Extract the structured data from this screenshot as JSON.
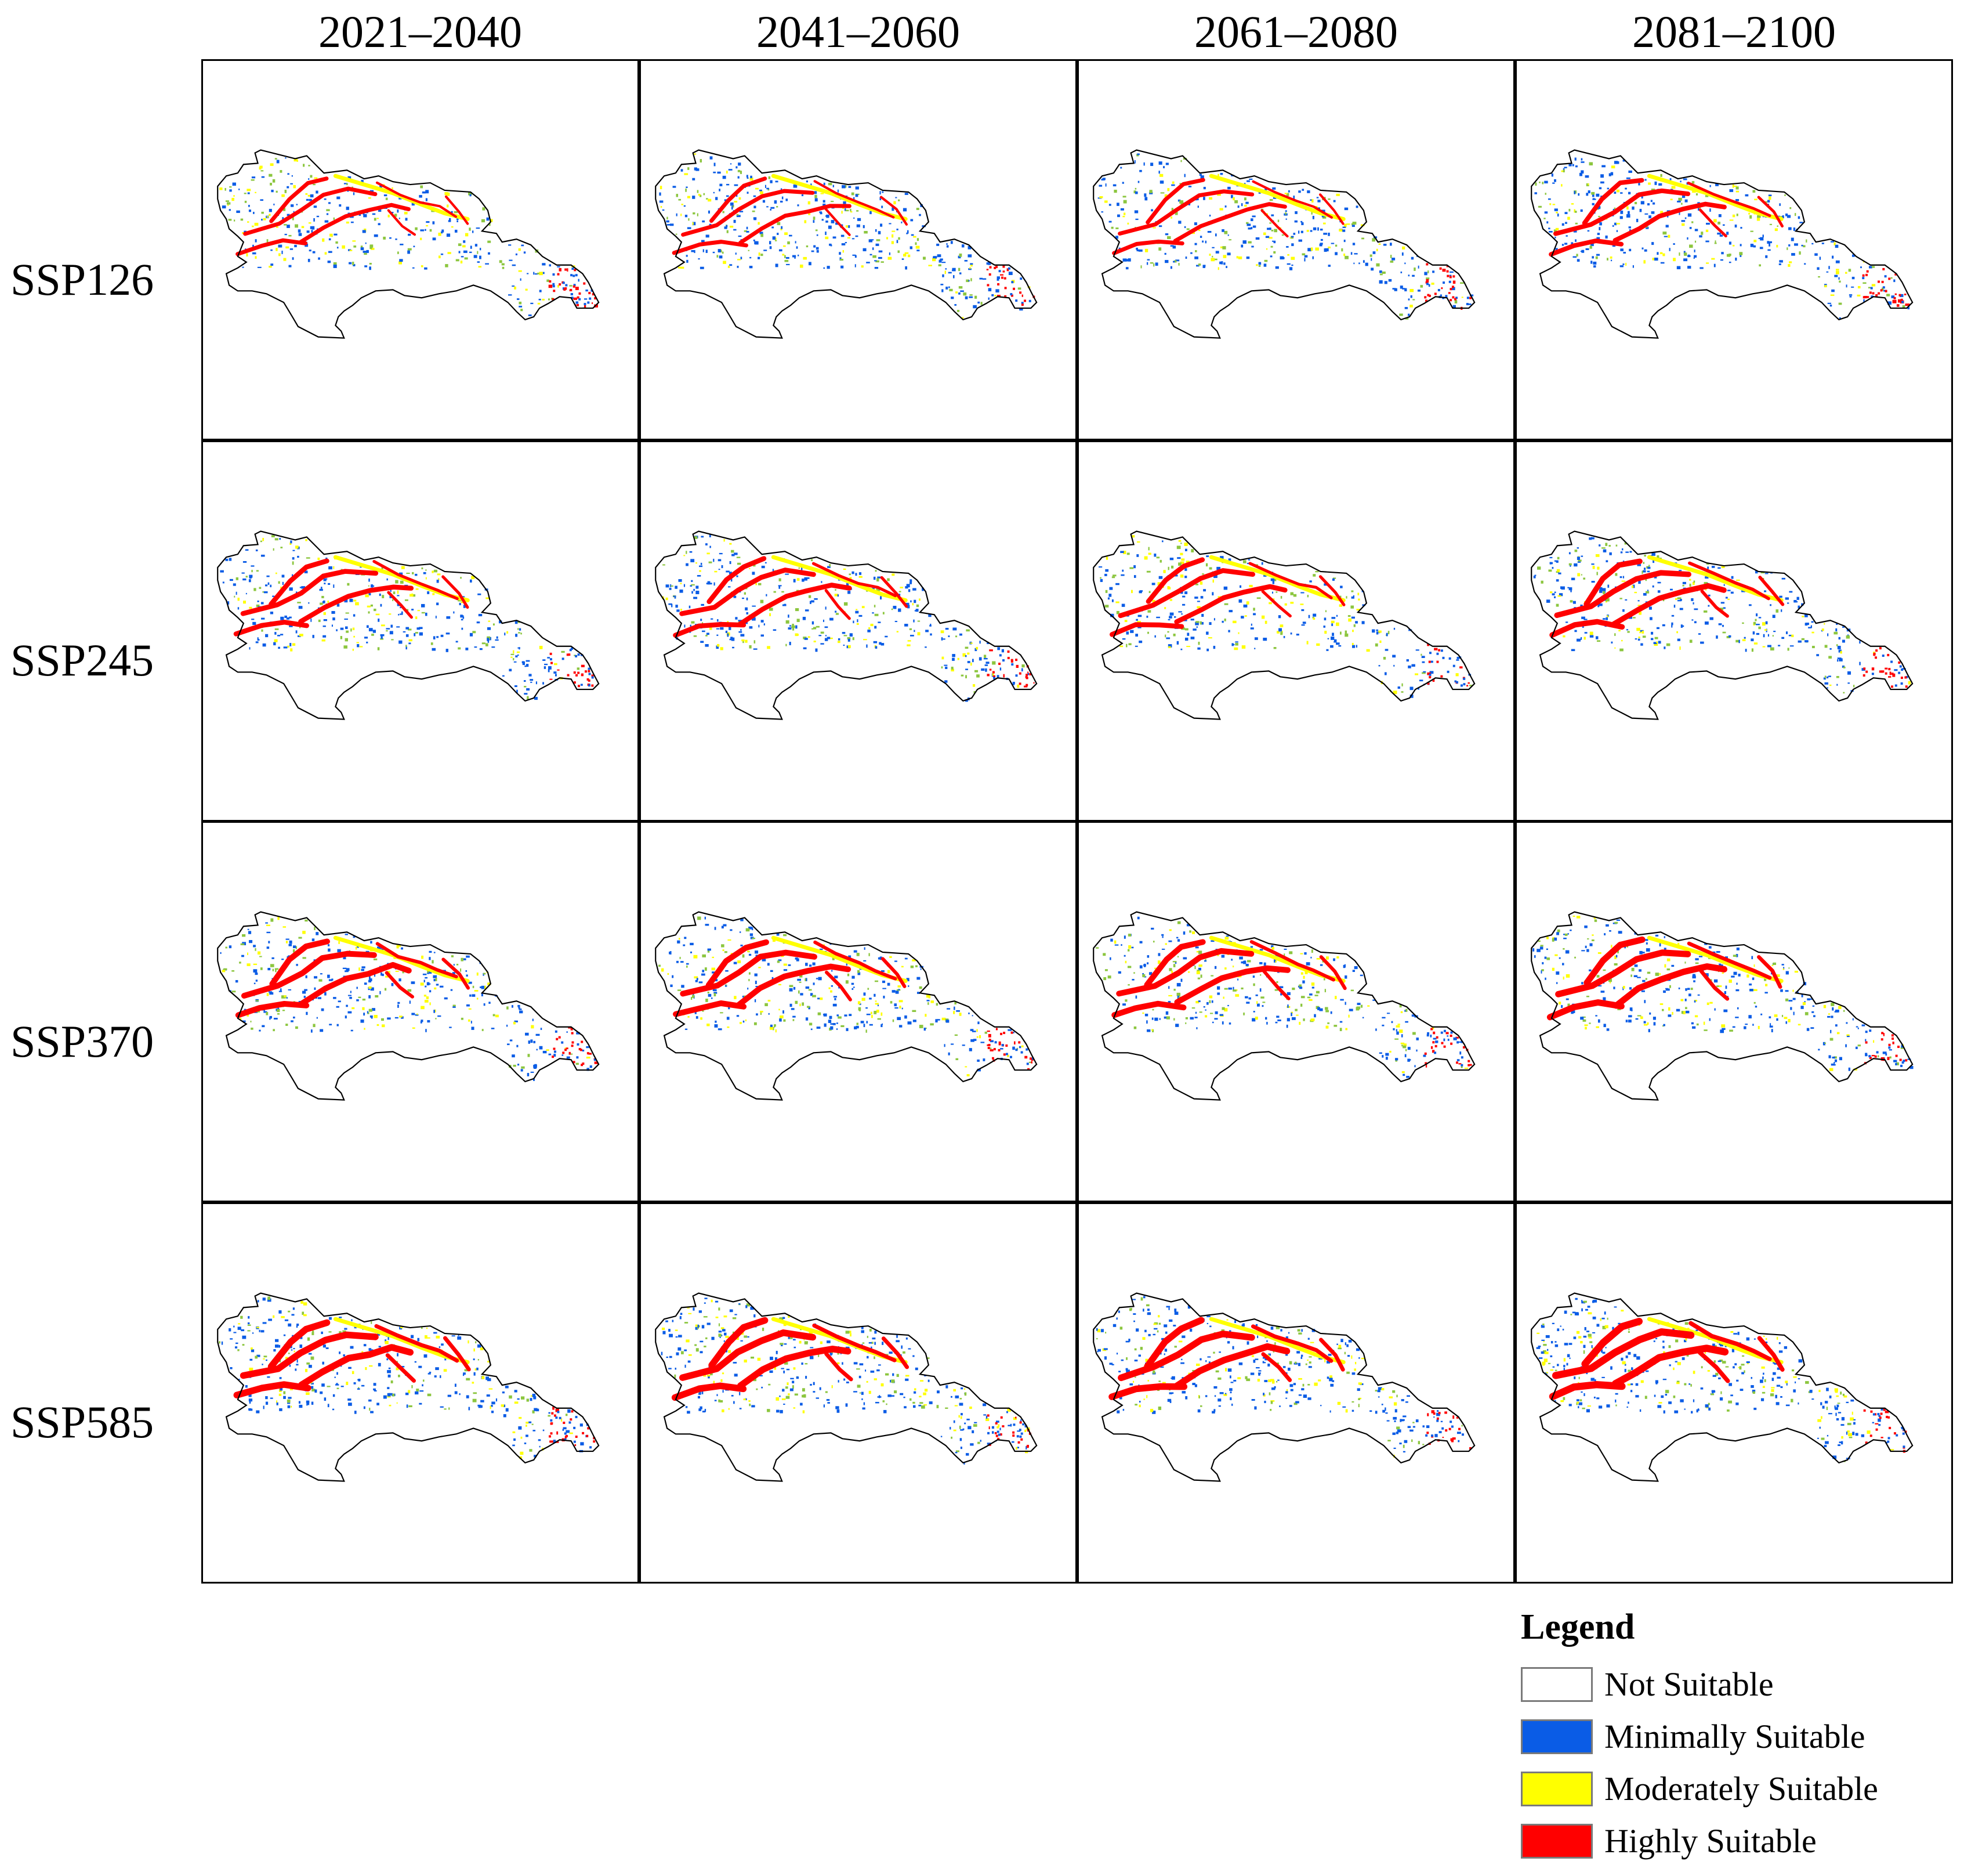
{
  "columns": [
    "2021–2040",
    "2041–2060",
    "2061–2080",
    "2081–2100"
  ],
  "rows": [
    "SSP126",
    "SSP245",
    "SSP370",
    "SSP585"
  ],
  "legend": {
    "title": "Legend",
    "items": [
      {
        "label": "Not Suitable",
        "color": "#ffffff"
      },
      {
        "label": "Minimally Suitable",
        "color": "#0a5ce6"
      },
      {
        "label": "Moderately Suitable",
        "color": "#ffff00"
      },
      {
        "label": "Highly Suitable",
        "color": "#ff0000"
      }
    ]
  },
  "map_icon": "habitat-suitability-map"
}
